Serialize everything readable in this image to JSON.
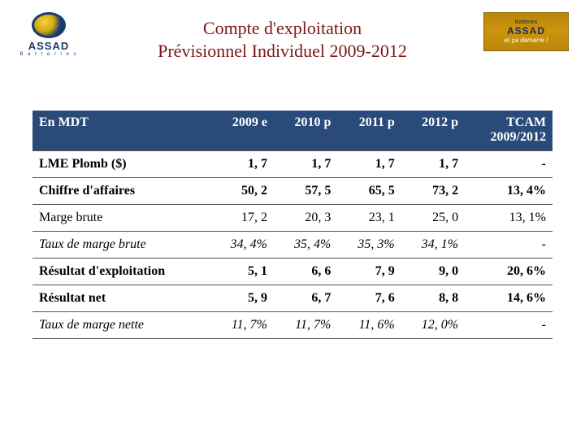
{
  "title": {
    "line1": "Compte d'exploitation",
    "line2": "Prévisionnel Individuel 2009-2012"
  },
  "logo_left": {
    "brand": "ASSAD",
    "sub": "B a t t e r i e s"
  },
  "logo_right": {
    "top": "Batteries",
    "brand": "ASSAD",
    "slogan": "et ça démarre !"
  },
  "table": {
    "header_bg": "#2a4a7a",
    "header_fg": "#ffffff",
    "border_color": "#555555",
    "columns": [
      "En MDT",
      "2009 e",
      "2010 p",
      "2011 p",
      "2012 p",
      "TCAM 2009/2012"
    ],
    "rows": [
      {
        "label": "LME Plomb ($)",
        "bold": true,
        "italic": false,
        "cells": [
          "1, 7",
          "1, 7",
          "1, 7",
          "1, 7",
          "-"
        ]
      },
      {
        "label": "Chiffre d'affaires",
        "bold": true,
        "italic": false,
        "cells": [
          "50, 2",
          "57, 5",
          "65, 5",
          "73, 2",
          "13, 4%"
        ]
      },
      {
        "label": "Marge brute",
        "bold": false,
        "italic": false,
        "cells": [
          "17, 2",
          "20, 3",
          "23, 1",
          "25, 0",
          "13, 1%"
        ]
      },
      {
        "label": "Taux de marge brute",
        "bold": false,
        "italic": true,
        "cells": [
          "34, 4%",
          "35, 4%",
          "35, 3%",
          "34, 1%",
          "-"
        ]
      },
      {
        "label": "Résultat d'exploitation",
        "bold": true,
        "italic": false,
        "cells": [
          "5, 1",
          "6, 6",
          "7, 9",
          "9, 0",
          "20, 6%"
        ]
      },
      {
        "label": "Résultat net",
        "bold": true,
        "italic": false,
        "cells": [
          "5, 9",
          "6, 7",
          "7, 6",
          "8, 8",
          "14, 6%"
        ]
      },
      {
        "label": "Taux de marge nette",
        "bold": false,
        "italic": true,
        "cells": [
          "11, 7%",
          "11, 7%",
          "11, 6%",
          "12, 0%",
          "-"
        ]
      }
    ]
  }
}
